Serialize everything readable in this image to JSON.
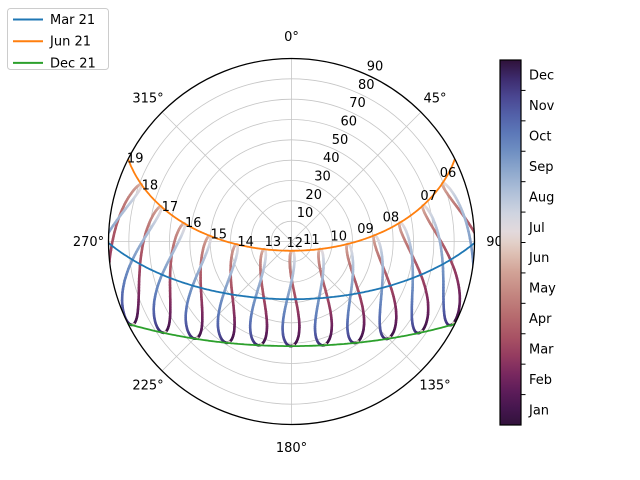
{
  "legend": {
    "items": [
      {
        "label": "Mar 21",
        "color": "#1f77b4"
      },
      {
        "label": "Jun 21",
        "color": "#ff7f0e"
      },
      {
        "label": "Dec 21",
        "color": "#2ca02c"
      }
    ]
  },
  "chart_data": {
    "type": "line",
    "subtype": "polar-sun-path-analemma",
    "description": "Sun position chart: azimuth (angle, 0=N top, clockwise) vs zenith angle (radius). Day arcs for three dates plus hourly analemma loops colored by month.",
    "latitude_deg": 28,
    "theta_axis": {
      "zero_location": "top",
      "direction": "clockwise",
      "ticks": [
        {
          "angle_deg": 0,
          "label": "0°"
        },
        {
          "angle_deg": 45,
          "label": "45°"
        },
        {
          "angle_deg": 90,
          "label": "90"
        },
        {
          "angle_deg": 135,
          "label": "135°"
        },
        {
          "angle_deg": 180,
          "label": "180°"
        },
        {
          "angle_deg": 225,
          "label": "225°"
        },
        {
          "angle_deg": 270,
          "label": "270°"
        },
        {
          "angle_deg": 315,
          "label": "315°"
        }
      ]
    },
    "r_axis": {
      "max": 90,
      "ticks": [
        10,
        20,
        30,
        40,
        50,
        60,
        70,
        80,
        90
      ],
      "label_angle_deg": 25.5
    },
    "day_curves": [
      {
        "label": "Mar 21",
        "day_of_year": 80,
        "color": "#1f77b4"
      },
      {
        "label": "Jun 21",
        "day_of_year": 172,
        "color": "#ff7f0e"
      },
      {
        "label": "Dec 21",
        "day_of_year": 355,
        "color": "#2ca02c"
      }
    ],
    "analemmas": {
      "hours": [
        6,
        7,
        8,
        9,
        10,
        11,
        12,
        13,
        14,
        15,
        16,
        17,
        18,
        19
      ],
      "hour_labels": [
        "06",
        "07",
        "08",
        "09",
        "10",
        "11",
        "12",
        "13",
        "14",
        "15",
        "16",
        "17",
        "18",
        "19"
      ]
    },
    "colormap": {
      "name": "twilight-shifted-like",
      "stops": [
        [
          0.0,
          "#31123b"
        ],
        [
          0.045,
          "#45164e"
        ],
        [
          0.09,
          "#5c1c59"
        ],
        [
          0.14,
          "#79285f"
        ],
        [
          0.19,
          "#953c60"
        ],
        [
          0.24,
          "#a85264"
        ],
        [
          0.3,
          "#b76c6f"
        ],
        [
          0.36,
          "#c48781"
        ],
        [
          0.42,
          "#d2a397"
        ],
        [
          0.47,
          "#dec0b4"
        ],
        [
          0.5,
          "#e2d0c9"
        ],
        [
          0.53,
          "#e2d9dc"
        ],
        [
          0.58,
          "#cfd4e0"
        ],
        [
          0.64,
          "#aebfd8"
        ],
        [
          0.7,
          "#8ba6cc"
        ],
        [
          0.75,
          "#6f8fc2"
        ],
        [
          0.8,
          "#5c78b8"
        ],
        [
          0.85,
          "#5260a8"
        ],
        [
          0.9,
          "#4a4691"
        ],
        [
          0.95,
          "#3d2b6d"
        ],
        [
          1.0,
          "#2f1139"
        ]
      ]
    },
    "colorbar": {
      "months_bottom_to_top": [
        "Jan",
        "Feb",
        "Mar",
        "Apr",
        "May",
        "Jun",
        "Jul",
        "Aug",
        "Sep",
        "Oct",
        "Nov",
        "Dec"
      ]
    },
    "style": {
      "grid_color": "#c6c6c6",
      "spine_color": "#000000",
      "text_color": "#000000",
      "background": "#ffffff"
    }
  }
}
